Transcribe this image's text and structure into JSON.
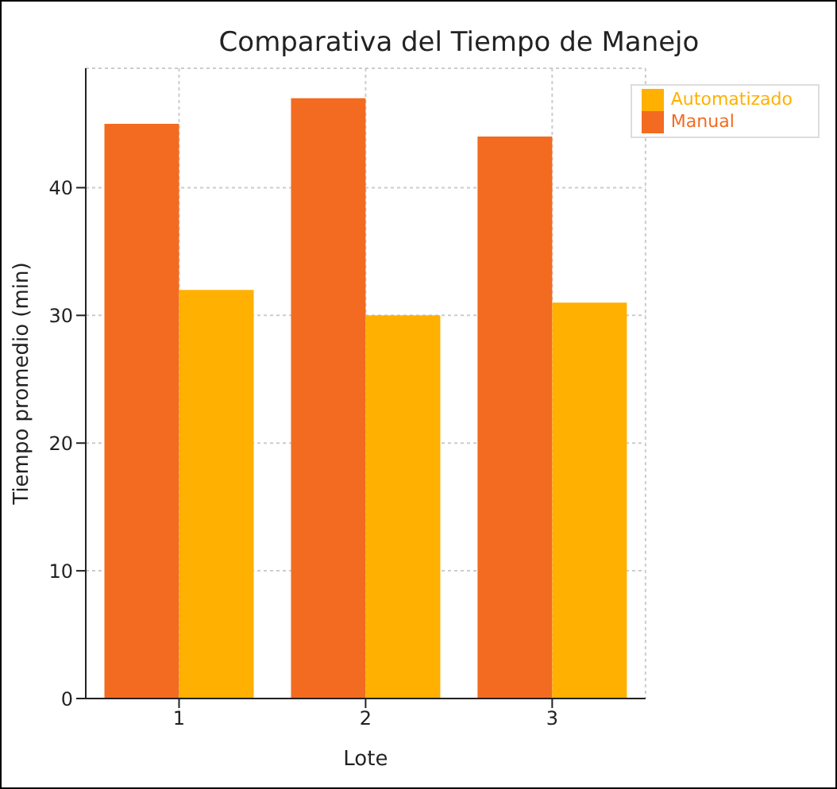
{
  "chart_data": {
    "type": "bar",
    "title": "Comparativa del Tiempo de Manejo",
    "xlabel": "Lote",
    "ylabel": "Tiempo promedio (min)",
    "categories": [
      "1",
      "2",
      "3"
    ],
    "series": [
      {
        "name": "Manual",
        "color": "#f26b21",
        "values": [
          45,
          47,
          44
        ]
      },
      {
        "name": "Automatizado",
        "color": "#ffb000",
        "values": [
          32,
          30,
          31
        ]
      }
    ],
    "ylim": [
      0,
      49.35
    ],
    "yticks": [
      0,
      10,
      20,
      30,
      40
    ],
    "grid": true,
    "legend": "top right"
  }
}
